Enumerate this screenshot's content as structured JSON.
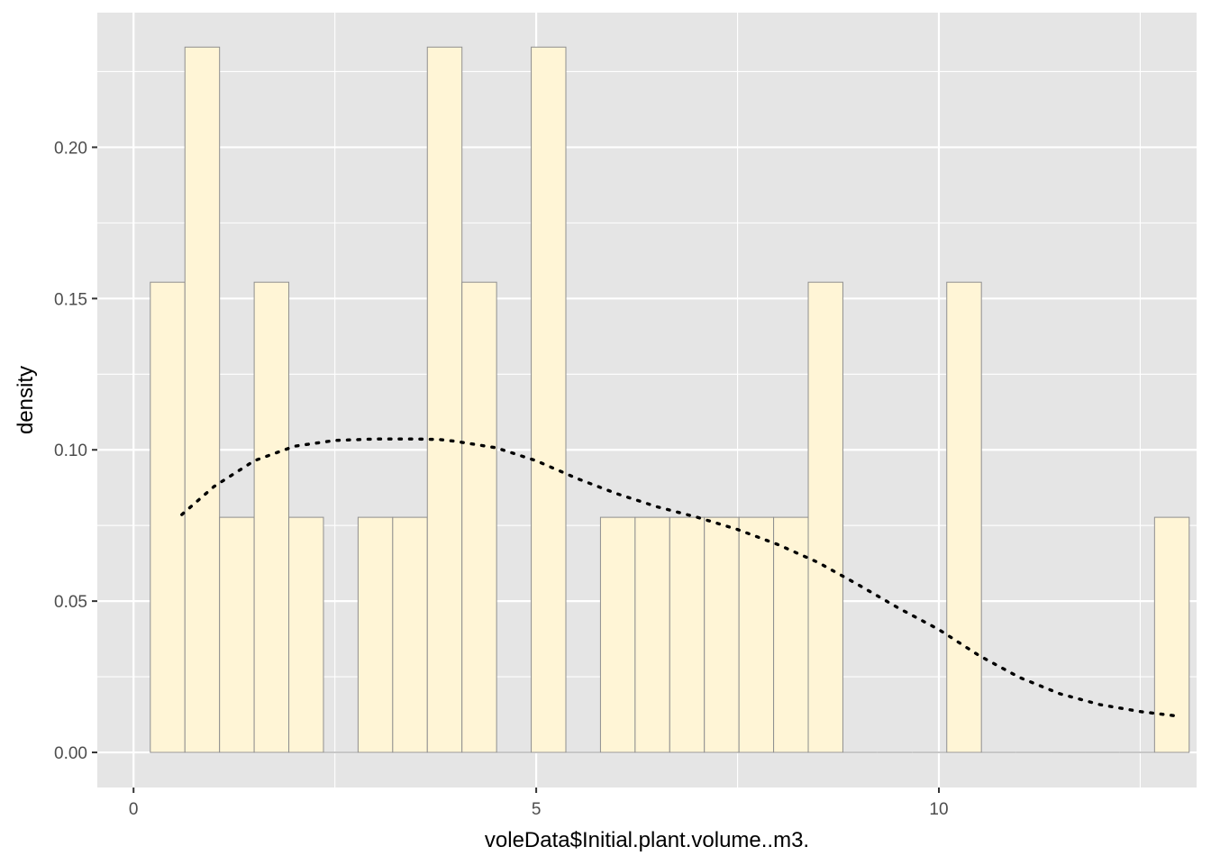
{
  "chart_data": {
    "type": "bar",
    "subtype": "histogram-with-density-curve",
    "xlabel": "voleData$Initial.plant.volume..m3.",
    "ylabel": "density",
    "xlim": [
      -0.45,
      13.2
    ],
    "ylim": [
      -0.0116,
      0.2445
    ],
    "x_ticks": [
      0,
      5,
      10
    ],
    "x_tick_labels": [
      "0",
      "5",
      "10"
    ],
    "y_ticks": [
      0,
      0.05,
      0.1,
      0.15,
      0.2
    ],
    "y_tick_labels": [
      "0.00",
      "0.05",
      "0.10",
      "0.15",
      "0.20"
    ],
    "grid": true,
    "colors": {
      "panel_background": "#e5e5e5",
      "grid": "#ffffff",
      "bar_fill": "#fff5d6",
      "bar_outline": "#8f8f8f",
      "curve": "#000000"
    },
    "bins": [
      {
        "x0": 0.208,
        "x1": 0.638,
        "density": 0.1554
      },
      {
        "x0": 0.638,
        "x1": 1.068,
        "density": 0.2331
      },
      {
        "x0": 1.068,
        "x1": 1.498,
        "density": 0.0777
      },
      {
        "x0": 1.498,
        "x1": 1.928,
        "density": 0.1554
      },
      {
        "x0": 1.928,
        "x1": 2.358,
        "density": 0.0777
      },
      {
        "x0": 2.358,
        "x1": 2.788,
        "density": 0
      },
      {
        "x0": 2.788,
        "x1": 3.218,
        "density": 0.0777
      },
      {
        "x0": 3.218,
        "x1": 3.648,
        "density": 0.0777
      },
      {
        "x0": 3.648,
        "x1": 4.078,
        "density": 0.2331
      },
      {
        "x0": 4.078,
        "x1": 4.508,
        "density": 0.1554
      },
      {
        "x0": 4.508,
        "x1": 4.938,
        "density": 0
      },
      {
        "x0": 4.938,
        "x1": 5.368,
        "density": 0.2331
      },
      {
        "x0": 5.368,
        "x1": 5.798,
        "density": 0
      },
      {
        "x0": 5.798,
        "x1": 6.228,
        "density": 0.0777
      },
      {
        "x0": 6.228,
        "x1": 6.658,
        "density": 0.0777
      },
      {
        "x0": 6.658,
        "x1": 7.088,
        "density": 0.0777
      },
      {
        "x0": 7.088,
        "x1": 7.518,
        "density": 0.0777
      },
      {
        "x0": 7.518,
        "x1": 7.948,
        "density": 0.0777
      },
      {
        "x0": 7.948,
        "x1": 8.378,
        "density": 0.0777
      },
      {
        "x0": 8.378,
        "x1": 8.808,
        "density": 0.1554
      },
      {
        "x0": 8.808,
        "x1": 9.238,
        "density": 0
      },
      {
        "x0": 9.238,
        "x1": 9.668,
        "density": 0
      },
      {
        "x0": 9.668,
        "x1": 10.098,
        "density": 0
      },
      {
        "x0": 10.098,
        "x1": 10.528,
        "density": 0.1554
      },
      {
        "x0": 10.528,
        "x1": 10.958,
        "density": 0
      },
      {
        "x0": 10.958,
        "x1": 11.388,
        "density": 0
      },
      {
        "x0": 11.388,
        "x1": 11.818,
        "density": 0
      },
      {
        "x0": 11.818,
        "x1": 12.248,
        "density": 0
      },
      {
        "x0": 12.248,
        "x1": 12.678,
        "density": 0
      },
      {
        "x0": 12.678,
        "x1": 13.108,
        "density": 0.0777
      }
    ],
    "curve": {
      "style": "dotted",
      "x": [
        0.6,
        1.0,
        1.5,
        2.0,
        2.5,
        3.0,
        3.5,
        3.8,
        4.0,
        4.5,
        5.0,
        5.5,
        6.0,
        6.5,
        7.0,
        7.5,
        8.0,
        8.5,
        9.0,
        9.5,
        10.0,
        10.5,
        11.0,
        11.5,
        12.0,
        12.5,
        13.0
      ],
      "y": [
        0.0786,
        0.0879,
        0.0964,
        0.1012,
        0.1031,
        0.1036,
        0.1036,
        0.1034,
        0.1028,
        0.1007,
        0.0964,
        0.0906,
        0.0855,
        0.0812,
        0.0777,
        0.0737,
        0.0687,
        0.0628,
        0.0554,
        0.0477,
        0.0406,
        0.032,
        0.0248,
        0.0194,
        0.0158,
        0.0135,
        0.0119
      ]
    }
  }
}
